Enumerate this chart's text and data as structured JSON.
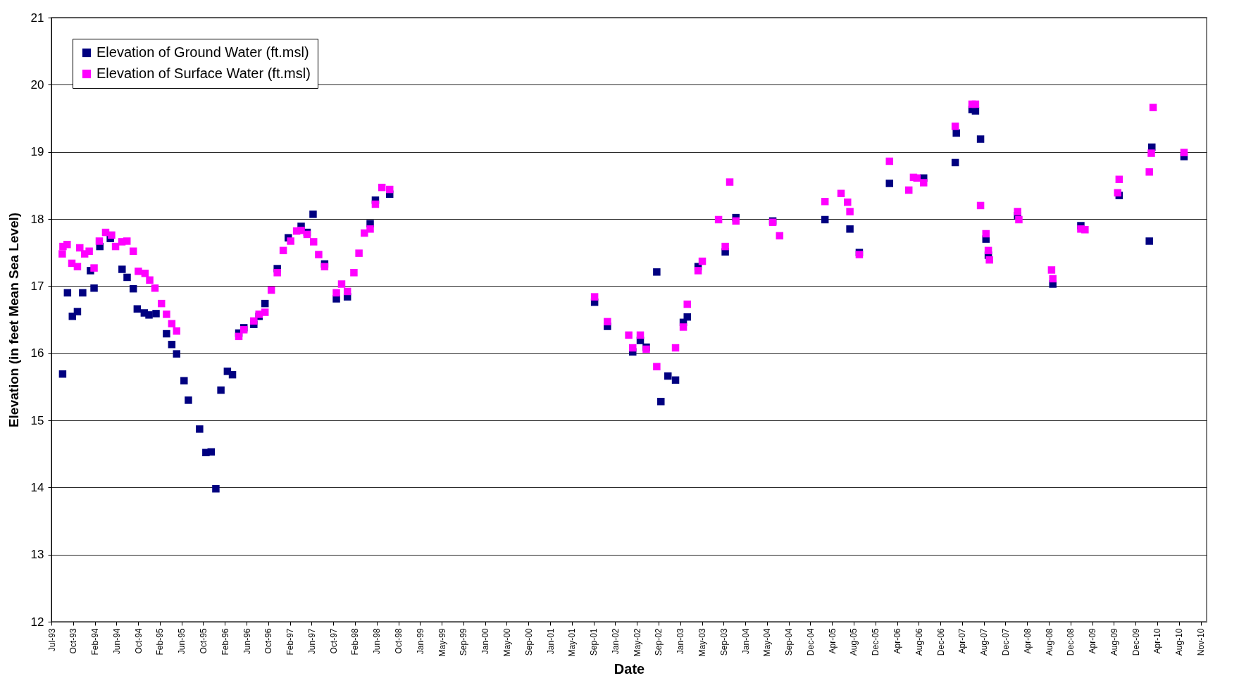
{
  "chart_data": {
    "type": "scatter",
    "xlabel": "Date",
    "ylabel": "Elevation (in feet Mean Sea Level)",
    "xlim": [
      "1993-07-01",
      "2011-01-01"
    ],
    "ylim": [
      12,
      21
    ],
    "yticks": [
      12,
      13,
      14,
      15,
      16,
      17,
      18,
      19,
      20,
      21
    ],
    "xticks": [
      {
        "value": "1993-07-01",
        "label": "Jul-93"
      },
      {
        "value": "1993-10-29",
        "label": "Oct-93"
      },
      {
        "value": "1994-02-26",
        "label": "Feb-94"
      },
      {
        "value": "1994-06-26",
        "label": "Jun-94"
      },
      {
        "value": "1994-10-24",
        "label": "Oct-94"
      },
      {
        "value": "1995-02-21",
        "label": "Feb-95"
      },
      {
        "value": "1995-06-21",
        "label": "Jun-95"
      },
      {
        "value": "1995-10-19",
        "label": "Oct-95"
      },
      {
        "value": "1996-02-16",
        "label": "Feb-96"
      },
      {
        "value": "1996-06-15",
        "label": "Jun-96"
      },
      {
        "value": "1996-10-13",
        "label": "Oct-96"
      },
      {
        "value": "1997-02-10",
        "label": "Feb-97"
      },
      {
        "value": "1997-06-10",
        "label": "Jun-97"
      },
      {
        "value": "1997-10-08",
        "label": "Oct-97"
      },
      {
        "value": "1998-02-05",
        "label": "Feb-98"
      },
      {
        "value": "1998-06-05",
        "label": "Jun-98"
      },
      {
        "value": "1998-10-03",
        "label": "Oct-98"
      },
      {
        "value": "1999-01-31",
        "label": "Jan-99"
      },
      {
        "value": "1999-05-31",
        "label": "May-99"
      },
      {
        "value": "1999-09-28",
        "label": "Sep-99"
      },
      {
        "value": "2000-01-26",
        "label": "Jan-00"
      },
      {
        "value": "2000-05-25",
        "label": "May-00"
      },
      {
        "value": "2000-09-22",
        "label": "Sep-00"
      },
      {
        "value": "2001-01-20",
        "label": "Jan-01"
      },
      {
        "value": "2001-05-20",
        "label": "May-01"
      },
      {
        "value": "2001-09-17",
        "label": "Sep-01"
      },
      {
        "value": "2002-01-15",
        "label": "Jan-02"
      },
      {
        "value": "2002-05-15",
        "label": "May-02"
      },
      {
        "value": "2002-09-12",
        "label": "Sep-02"
      },
      {
        "value": "2003-01-10",
        "label": "Jan-03"
      },
      {
        "value": "2003-05-10",
        "label": "May-03"
      },
      {
        "value": "2003-09-07",
        "label": "Sep-03"
      },
      {
        "value": "2004-01-05",
        "label": "Jan-04"
      },
      {
        "value": "2004-05-04",
        "label": "May-04"
      },
      {
        "value": "2004-09-01",
        "label": "Sep-04"
      },
      {
        "value": "2004-12-30",
        "label": "Dec-04"
      },
      {
        "value": "2005-04-29",
        "label": "Apr-05"
      },
      {
        "value": "2005-08-27",
        "label": "Aug-05"
      },
      {
        "value": "2005-12-25",
        "label": "Dec-05"
      },
      {
        "value": "2006-04-24",
        "label": "Apr-06"
      },
      {
        "value": "2006-08-22",
        "label": "Aug-06"
      },
      {
        "value": "2006-12-20",
        "label": "Dec-06"
      },
      {
        "value": "2007-04-19",
        "label": "Apr-07"
      },
      {
        "value": "2007-08-17",
        "label": "Aug-07"
      },
      {
        "value": "2007-12-15",
        "label": "Dec-07"
      },
      {
        "value": "2008-04-13",
        "label": "Apr-08"
      },
      {
        "value": "2008-08-11",
        "label": "Aug-08"
      },
      {
        "value": "2008-12-09",
        "label": "Dec-08"
      },
      {
        "value": "2009-04-08",
        "label": "Apr-09"
      },
      {
        "value": "2009-08-06",
        "label": "Aug-09"
      },
      {
        "value": "2009-12-04",
        "label": "Dec-09"
      },
      {
        "value": "2010-04-03",
        "label": "Apr-10"
      },
      {
        "value": "2010-08-01",
        "label": "Aug-10"
      },
      {
        "value": "2010-11-29",
        "label": "Nov-10"
      }
    ],
    "grid": "y",
    "legend": "top left",
    "marker": "square",
    "series": [
      {
        "name": "Elevation of Ground Water (ft.msl)",
        "color": "#000080",
        "x": [
          "1993-09-01",
          "1993-09-28",
          "1993-10-25",
          "1993-11-22",
          "1993-12-21",
          "1994-02-02",
          "1994-02-22",
          "1994-03-26",
          "1994-05-23",
          "1994-07-27",
          "1994-08-24",
          "1994-09-27",
          "1994-10-19",
          "1994-11-27",
          "1994-12-23",
          "1995-01-31",
          "1995-03-30",
          "1995-04-28",
          "1995-05-25",
          "1995-07-05",
          "1995-07-29",
          "1995-09-29",
          "1995-11-03",
          "1995-12-02",
          "1995-12-28",
          "1996-01-25",
          "1996-03-01",
          "1996-03-29",
          "1996-05-03",
          "1996-05-31",
          "1996-07-25",
          "1996-08-23",
          "1996-09-25",
          "1996-12-02",
          "1997-02-01",
          "1997-04-13",
          "1997-05-16",
          "1997-06-18",
          "1997-08-21",
          "1997-10-25",
          "1997-12-25",
          "1998-04-30",
          "1998-05-29",
          "1998-08-16",
          "2001-09-23",
          "2001-12-03",
          "2002-04-22",
          "2002-06-03",
          "2002-07-06",
          "2002-09-02",
          "2002-09-25",
          "2002-11-03",
          "2002-12-15",
          "2003-01-27",
          "2003-02-18",
          "2003-04-19",
          "2003-09-16",
          "2003-11-14",
          "2004-06-05",
          "2005-03-21",
          "2005-08-06",
          "2005-09-27",
          "2006-03-13",
          "2006-09-18",
          "2007-03-12",
          "2007-03-18",
          "2007-06-13",
          "2007-07-02",
          "2007-07-30",
          "2007-08-29",
          "2007-09-11",
          "2008-02-20",
          "2008-09-02",
          "2009-02-04",
          "2009-09-04",
          "2010-02-18",
          "2010-03-04",
          "2010-08-29"
        ],
        "values": [
          15.69,
          16.9,
          16.55,
          16.62,
          16.9,
          17.23,
          16.97,
          17.59,
          17.71,
          17.25,
          17.13,
          16.96,
          16.66,
          16.6,
          16.57,
          16.59,
          16.29,
          16.13,
          15.99,
          15.59,
          15.3,
          14.87,
          14.52,
          14.53,
          13.98,
          15.45,
          15.73,
          15.68,
          16.3,
          16.38,
          16.43,
          16.55,
          16.74,
          17.26,
          17.72,
          17.89,
          17.8,
          18.07,
          17.33,
          16.81,
          16.84,
          17.93,
          18.28,
          18.37,
          16.76,
          16.4,
          16.02,
          16.19,
          16.09,
          17.21,
          15.28,
          15.66,
          15.6,
          16.46,
          16.54,
          17.29,
          17.51,
          18.02,
          17.97,
          17.99,
          17.85,
          17.5,
          18.53,
          18.61,
          18.84,
          19.28,
          19.63,
          19.61,
          19.19,
          17.7,
          17.46,
          18.05,
          17.03,
          17.9,
          18.35,
          17.67,
          19.07,
          18.93
        ]
      },
      {
        "name": "Elevation of Surface Water (ft.msl)",
        "color": "#ff00ff",
        "x": [
          "1993-08-30",
          "1993-09-03",
          "1993-09-26",
          "1993-10-22",
          "1993-11-22",
          "1993-12-05",
          "1994-01-01",
          "1994-01-26",
          "1994-02-22",
          "1994-03-23",
          "1994-04-27",
          "1994-05-30",
          "1994-06-21",
          "1994-07-26",
          "1994-08-23",
          "1994-09-27",
          "1994-10-25",
          "1994-12-01",
          "1994-12-27",
          "1995-01-25",
          "1995-03-02",
          "1995-03-30",
          "1995-04-28",
          "1995-05-25",
          "1996-05-03",
          "1996-05-31",
          "1996-07-25",
          "1996-08-23",
          "1996-09-25",
          "1996-10-30",
          "1996-12-02",
          "1997-01-04",
          "1997-02-14",
          "1997-03-19",
          "1997-04-13",
          "1997-05-16",
          "1997-06-21",
          "1997-07-19",
          "1997-08-21",
          "1997-10-25",
          "1997-11-23",
          "1997-12-25",
          "1998-01-30",
          "1998-02-27",
          "1998-03-29",
          "1998-04-30",
          "1998-05-29",
          "1998-07-04",
          "1998-08-16",
          "2001-09-23",
          "2001-12-03",
          "2002-03-31",
          "2002-04-22",
          "2002-06-03",
          "2002-07-06",
          "2002-09-02",
          "2002-12-15",
          "2003-01-27",
          "2003-02-18",
          "2003-04-19",
          "2003-05-12",
          "2003-08-10",
          "2003-09-16",
          "2003-10-11",
          "2003-11-14",
          "2004-06-05",
          "2004-07-13",
          "2005-03-21",
          "2005-06-18",
          "2005-07-24",
          "2005-08-06",
          "2005-09-27",
          "2006-03-13",
          "2006-06-28",
          "2006-07-24",
          "2006-08-12",
          "2006-09-18",
          "2007-03-12",
          "2007-06-13",
          "2007-07-02",
          "2007-07-30",
          "2007-08-29",
          "2007-09-11",
          "2007-09-17",
          "2008-02-20",
          "2008-02-27",
          "2008-08-26",
          "2008-09-02",
          "2009-02-04",
          "2009-02-27",
          "2009-08-27",
          "2009-09-04",
          "2010-02-18",
          "2010-03-01",
          "2010-03-11",
          "2010-08-29"
        ],
        "values": [
          17.48,
          17.59,
          17.62,
          17.34,
          17.29,
          17.57,
          17.48,
          17.52,
          17.27,
          17.67,
          17.8,
          17.76,
          17.59,
          17.66,
          17.67,
          17.52,
          17.22,
          17.19,
          17.09,
          16.97,
          16.74,
          16.58,
          16.44,
          16.33,
          16.25,
          16.35,
          16.48,
          16.58,
          16.61,
          16.94,
          17.2,
          17.53,
          17.67,
          17.82,
          17.83,
          17.77,
          17.66,
          17.47,
          17.29,
          16.9,
          17.03,
          16.92,
          17.2,
          17.49,
          17.79,
          17.85,
          18.22,
          18.47,
          18.44,
          16.84,
          16.47,
          16.27,
          16.08,
          16.27,
          16.06,
          15.8,
          16.08,
          16.39,
          16.73,
          17.23,
          17.37,
          17.99,
          17.59,
          18.55,
          17.97,
          17.95,
          17.75,
          18.26,
          18.38,
          18.25,
          18.11,
          17.47,
          18.86,
          18.43,
          18.62,
          18.61,
          18.54,
          19.38,
          19.71,
          19.71,
          18.2,
          17.78,
          17.53,
          17.39,
          18.11,
          17.99,
          17.24,
          17.11,
          17.85,
          17.84,
          18.39,
          18.59,
          18.7,
          18.98,
          19.66,
          18.99
        ]
      }
    ]
  }
}
